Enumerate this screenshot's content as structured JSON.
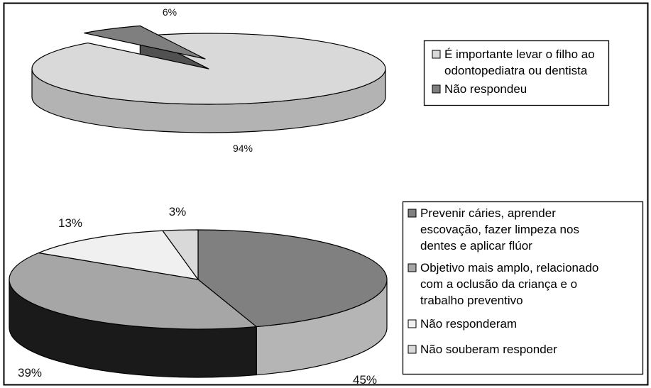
{
  "chart_data": [
    {
      "type": "pie",
      "style": "3d-exploded",
      "categories": [
        "É importante levar o filho ao odontopediatra ou dentista",
        "Não respondeu"
      ],
      "values": [
        94,
        6
      ],
      "labels": [
        "94%",
        "6%"
      ],
      "colors": [
        "#d9d9d9",
        "#7f7f7f"
      ],
      "legend": {
        "placement": "right",
        "items": [
          {
            "lines": [
              "É importante levar o filho ao",
              "odontopediatra ou dentista"
            ],
            "color": "#d9d9d9"
          },
          {
            "lines": [
              "Não respondeu"
            ],
            "color": "#7f7f7f"
          }
        ]
      }
    },
    {
      "type": "pie",
      "style": "3d",
      "categories": [
        "Prevenir cáries, aprender escovação, fazer limpeza nos dentes e aplicar flúor",
        "Objetivo mais amplo, relacionado com a oclusão da criança e o trabalho preventivo",
        "Não responderam",
        "Não souberam responder"
      ],
      "values": [
        45,
        39,
        13,
        3
      ],
      "labels": [
        "45%",
        "39%",
        "13%",
        "3%"
      ],
      "colors": [
        "#808080",
        "#a6a6a6",
        "#f0f0f0",
        "#d9d9d9"
      ],
      "legend": {
        "placement": "right",
        "items": [
          {
            "lines": [
              "Prevenir cáries, aprender",
              "escovação, fazer limpeza nos",
              "dentes e aplicar flúor"
            ],
            "color": "#808080"
          },
          {
            "lines": [
              "Objetivo mais amplo, relacionado",
              "com a oclusão da criança e o",
              "trabalho preventivo"
            ],
            "color": "#a6a6a6"
          },
          {
            "lines": [
              "Não responderam"
            ],
            "color": "#f0f0f0"
          },
          {
            "lines": [
              "Não souberam responder"
            ],
            "color": "#d9d9d9"
          }
        ]
      }
    }
  ]
}
